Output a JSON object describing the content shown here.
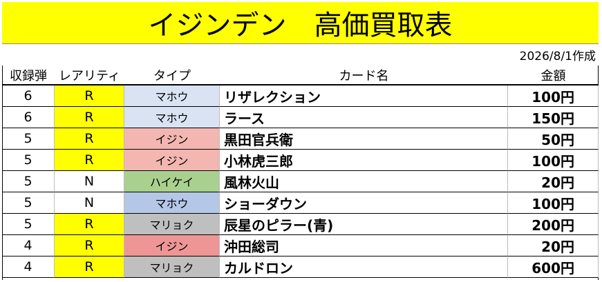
{
  "header": {
    "title": "イジンデン　高価買取表",
    "date": "2026/8/1作成"
  },
  "table": {
    "columns": [
      "収録弾",
      "レアリティ",
      "タイプ",
      "カード名",
      "金額"
    ],
    "rows": [
      [
        "6",
        "R",
        "マホウ",
        "リザレクション",
        "100円"
      ],
      [
        "6",
        "R",
        "マホウ",
        "ラース",
        "150円"
      ],
      [
        "5",
        "R",
        "イジン",
        "黒田官兵衛",
        "50円"
      ],
      [
        "5",
        "R",
        "イジン",
        "小林虎三郎",
        "100円"
      ],
      [
        "5",
        "N",
        "ハイケイ",
        "風林火山",
        "20円"
      ],
      [
        "5",
        "N",
        "マホウ",
        "ショーダウン",
        "100円"
      ],
      [
        "5",
        "R",
        "マリョク",
        "辰星のピラー(青)",
        "200円"
      ],
      [
        "4",
        "R",
        "イジン",
        "沖田総司",
        "20円"
      ],
      [
        "4",
        "R",
        "マリョク",
        "カルドロン",
        "600円"
      ]
    ]
  }
}
